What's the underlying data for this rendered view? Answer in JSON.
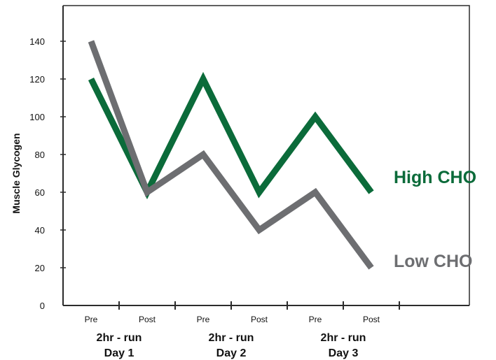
{
  "chart_data": {
    "type": "line",
    "title": "",
    "ylabel": "Muscle Glycogen",
    "xlabel": "",
    "ylim": [
      0,
      140
    ],
    "yticks": [
      0,
      20,
      40,
      60,
      80,
      100,
      120,
      140
    ],
    "categories": [
      "Pre",
      "Post",
      "Pre",
      "Post",
      "Pre",
      "Post"
    ],
    "groups": [
      {
        "line1": "2hr - run",
        "line2": "Day 1"
      },
      {
        "line1": "2hr - run",
        "line2": "Day 2"
      },
      {
        "line1": "2hr - run",
        "line2": "Day 3"
      }
    ],
    "series": [
      {
        "name": "High CHO",
        "color": "#0b6b3a",
        "points": [
          {
            "x": "Day 1 Pre",
            "y": 120
          },
          {
            "x": "Day 1 Post",
            "y": 60
          },
          {
            "x": "Day 2 Pre",
            "y": 120
          },
          {
            "x": "Day 2 Post",
            "y": 60
          },
          {
            "x": "Day 3 Pre",
            "y": 100
          },
          {
            "x": "Day 3 Post",
            "y": 60
          }
        ]
      },
      {
        "name": "Low CHO",
        "color": "#6d6e71",
        "points": [
          {
            "x": "Day 1 Pre",
            "y": 140
          },
          {
            "x": "Day 1 Post",
            "y": 60
          },
          {
            "x": "Day 2 Pre",
            "y": 80
          },
          {
            "x": "Day 2 Post",
            "y": 40
          },
          {
            "x": "Day 3 Pre",
            "y": 60
          },
          {
            "x": "Day 3 Post",
            "y": 20
          }
        ]
      }
    ],
    "grid": false,
    "legend": "direct-labels-right"
  }
}
